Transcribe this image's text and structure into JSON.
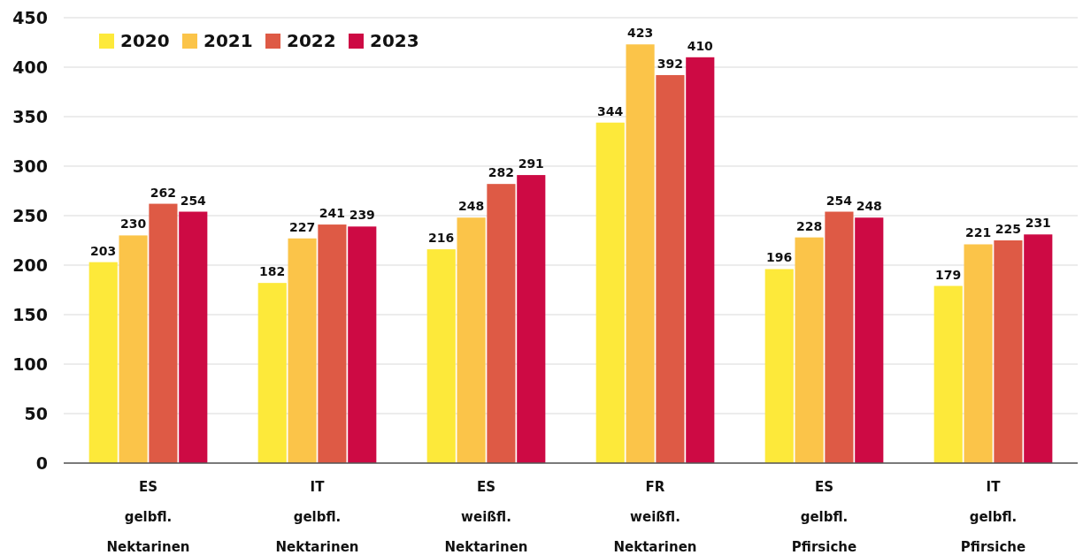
{
  "chart_data": {
    "type": "bar",
    "categories": [
      "ES\ngelbfl.\nNektarinen",
      "IT\ngelbfl.\nNektarinen",
      "ES\nweißfl.\nNektarinen",
      "FR\nweißfl.\nNektarinen",
      "ES\ngelbfl.\nPfirsiche",
      "IT\ngelbfl.\nPfirsiche"
    ],
    "series": [
      {
        "name": "2020",
        "color": "#fde93a",
        "values": [
          203,
          182,
          216,
          344,
          196,
          179
        ]
      },
      {
        "name": "2021",
        "color": "#fbc449",
        "values": [
          230,
          227,
          248,
          423,
          228,
          221
        ]
      },
      {
        "name": "2022",
        "color": "#de5a45",
        "values": [
          262,
          241,
          282,
          392,
          254,
          225
        ]
      },
      {
        "name": "2023",
        "color": "#cd0a44",
        "values": [
          254,
          239,
          291,
          410,
          248,
          231
        ]
      }
    ],
    "ylim": [
      0,
      450
    ],
    "yticks": [
      0,
      50,
      100,
      150,
      200,
      250,
      300,
      350,
      400,
      450
    ],
    "grid": "y",
    "legend": "top left",
    "data_labels": true
  }
}
